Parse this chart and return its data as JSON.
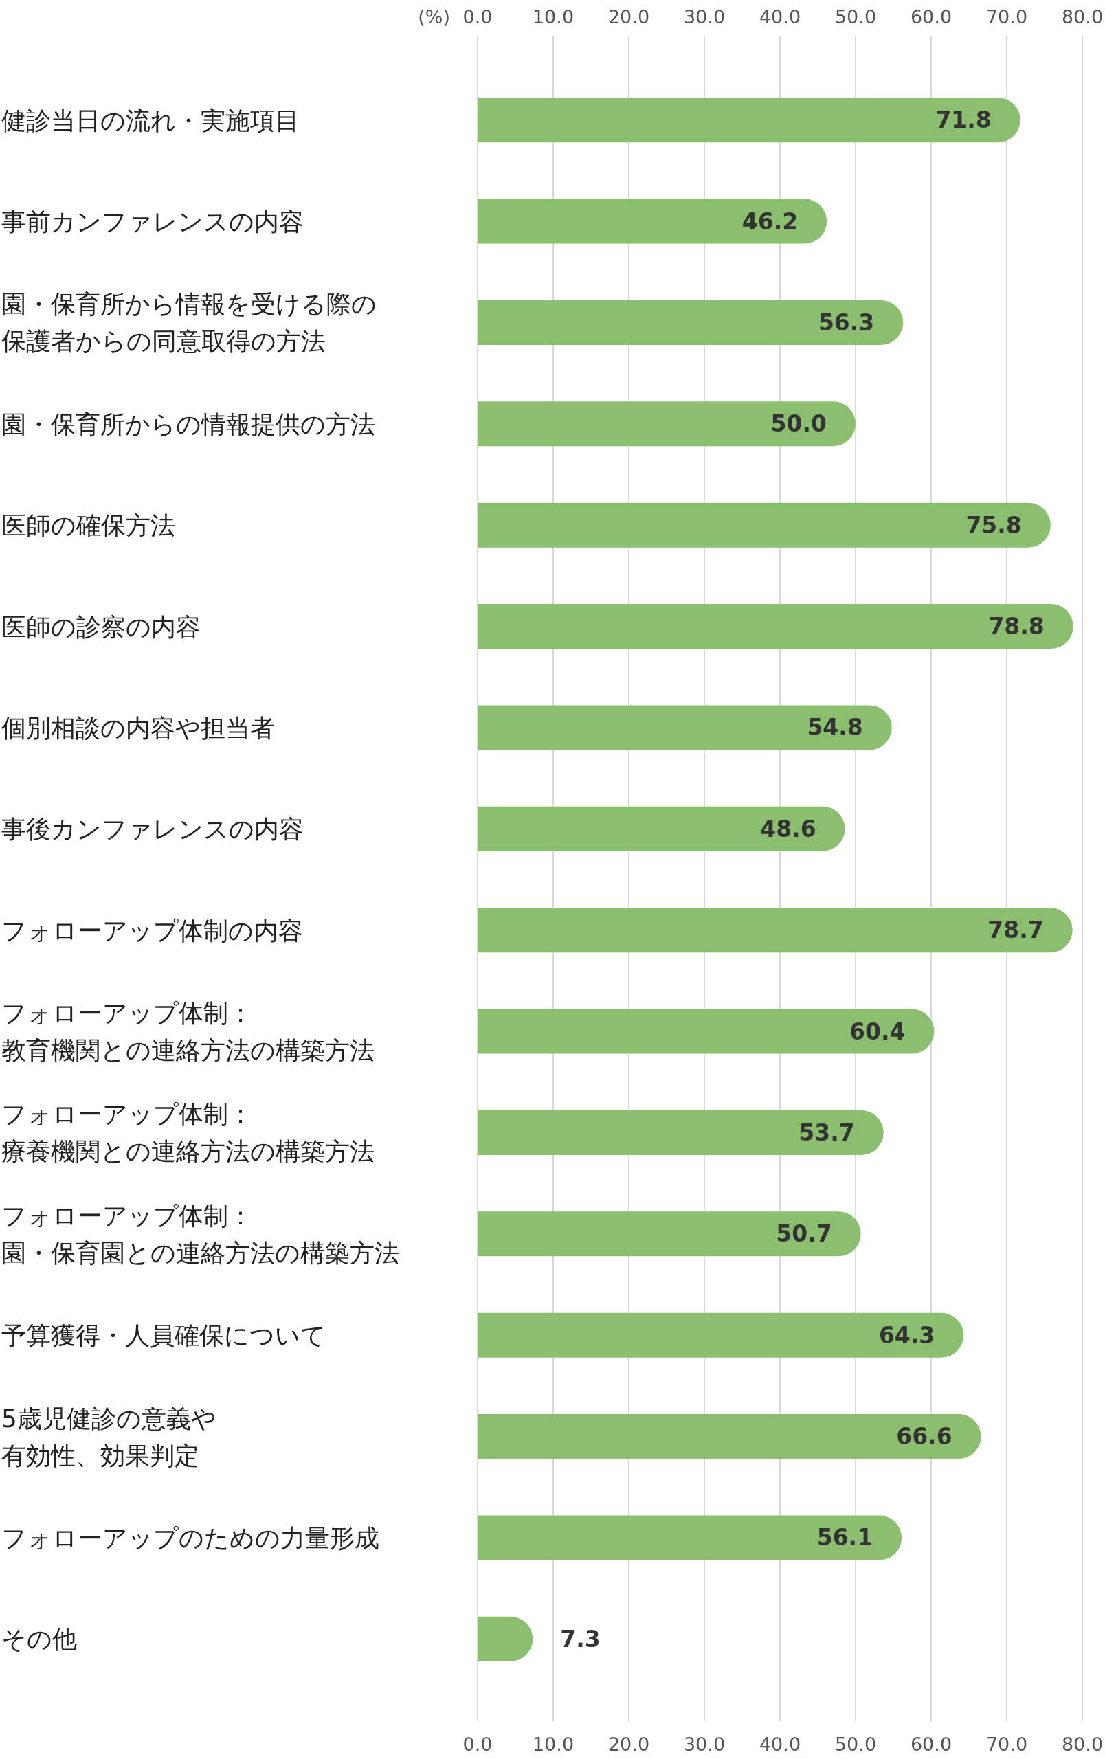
{
  "chart_data": {
    "type": "bar",
    "orientation": "horizontal",
    "xlabel": "(%)",
    "categories": [
      "健診当日の流れ・実施項目",
      "事前カンファレンスの内容",
      "園・保育所から情報を受ける際の保護者からの同意取得の方法",
      "園・保育所からの情報提供の方法",
      "医師の確保方法",
      "医師の診察の内容",
      "個別相談の内容や担当者",
      "事後カンファレンスの内容",
      "フォローアップ体制の内容",
      "フォローアップ体制：教育機関との連絡方法の構築方法",
      "フォローアップ体制：療養機関との連絡方法の構築方法",
      "フォローアップ体制：園・保育園との連絡方法の構築方法",
      "予算獲得・人員確保について",
      "5歳児健診の意義や有効性、効果判定",
      "フォローアップのための力量形成",
      "その他"
    ],
    "values": [
      71.8,
      46.2,
      56.3,
      50.0,
      75.8,
      78.8,
      54.8,
      48.6,
      78.7,
      60.4,
      53.7,
      50.7,
      64.3,
      66.6,
      56.1,
      7.3
    ],
    "value_labels": [
      "71.8",
      "46.2",
      "56.3",
      "50.0",
      "75.8",
      "78.8",
      "54.8",
      "48.6",
      "78.7",
      "60.4",
      "53.7",
      "50.7",
      "64.3",
      "66.6",
      "56.1",
      "7.3"
    ],
    "color": "#8bbf6f",
    "xlim": [
      0,
      80
    ],
    "xticks": [
      {
        "value": 0,
        "label": "0.0"
      },
      {
        "value": 10,
        "label": "10.0"
      },
      {
        "value": 20,
        "label": "20.0"
      },
      {
        "value": 30,
        "label": "30.0"
      },
      {
        "value": 40,
        "label": "40.0"
      },
      {
        "value": 50,
        "label": "50.0"
      },
      {
        "value": 60,
        "label": "60.0"
      },
      {
        "value": 70,
        "label": "70.0"
      },
      {
        "value": 80,
        "label": "80.0"
      }
    ],
    "x2lim": [
      0,
      80
    ],
    "x2ticks": [
      {
        "value": 0,
        "label": "0.0"
      },
      {
        "value": 10,
        "label": "10.0"
      },
      {
        "value": 20,
        "label": "20.0"
      },
      {
        "value": 30,
        "label": "30.0"
      },
      {
        "value": 40,
        "label": "40.0"
      },
      {
        "value": 50,
        "label": "50.0"
      },
      {
        "value": 60,
        "label": "60.0"
      },
      {
        "value": 70,
        "label": "70.0"
      },
      {
        "value": 80,
        "label": "80.0"
      }
    ],
    "grid": "x"
  }
}
